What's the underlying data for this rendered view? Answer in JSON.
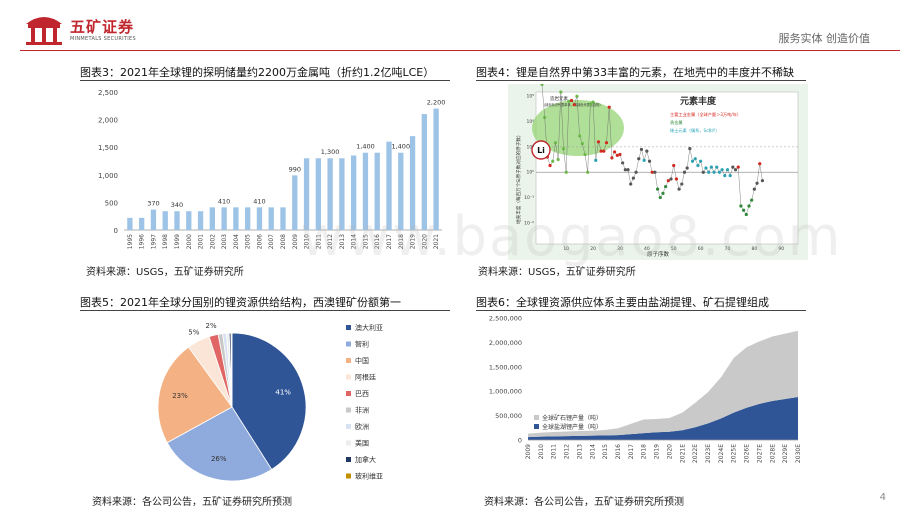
{
  "header": {
    "brand_name": "五矿证券",
    "brand_sub": "MINMETALS SECURITIES",
    "slogan": "服务实体  创造价值",
    "brand_color": "#c0262d"
  },
  "page_number": "4",
  "watermark": "www.baogao8.com",
  "charts": {
    "fig3": {
      "title": "图表3：2021年全球锂的探明储量约2200万金属吨（折约1.2亿吨LCE）",
      "source": "资料来源：USGS，五矿证券研究所"
    },
    "fig4": {
      "title": "图表4：锂是自然界中第33丰富的元素，在地壳中的丰度并不稀缺",
      "source": "资料来源：USGS，五矿证券研究所",
      "inner_title": "元素丰度",
      "legend_rock": "造岩元素",
      "legend_rock_sub": "（绿色标识代表单体，浅绿色代表化合物）",
      "legend_industrial": "主要工业金属（全球产量＞3万吨/年）",
      "legend_precious": "贵金属",
      "legend_rare": "稀土元素（镧系，Sc和Y）",
      "y_axis_label": "地壳丰度（每百万个Si原子数对应的原子数）",
      "x_axis_label": "原子序数",
      "li_label": "Li",
      "x_ticks": [
        "10",
        "20",
        "30",
        "40",
        "50",
        "60",
        "70",
        "80",
        "90"
      ],
      "y_ticks": [
        "10⁹",
        "10⁶",
        "10³",
        "10⁰",
        "10⁻³",
        "10⁻⁶"
      ],
      "colors": {
        "rock": "#6fbf4a",
        "industrial": "#d9261c",
        "precious": "#2e8b3a",
        "rare": "#2aa7b8"
      }
    },
    "fig5": {
      "title": "图表5：2021年全球分国别的锂资源供给结构，西澳锂矿份额第一",
      "source": "资料来源：各公司公告，五矿证券研究所预测"
    },
    "fig6": {
      "title": "图表6：全球锂资源供应体系主要由盐湖提锂、矿石提锂组成",
      "source": "资料来源：各公司公告，五矿证券研究所预测"
    }
  },
  "chart_data": [
    {
      "type": "bar",
      "id": "fig3",
      "categories": [
        "1995",
        "1996",
        "1997",
        "1998",
        "1999",
        "2000",
        "2001",
        "2002",
        "2003",
        "2004",
        "2005",
        "2006",
        "2007",
        "2008",
        "2009",
        "2010",
        "2011",
        "2012",
        "2013",
        "2014",
        "2015",
        "2016",
        "2017",
        "2018",
        "2019",
        "2020",
        "2021"
      ],
      "values": [
        220,
        220,
        370,
        340,
        340,
        340,
        340,
        410,
        410,
        410,
        410,
        410,
        410,
        410,
        990,
        1300,
        1300,
        1300,
        1300,
        1350,
        1400,
        1400,
        1600,
        1400,
        1700,
        2100,
        2200
      ],
      "data_labels": [
        null,
        null,
        "370",
        null,
        "340",
        null,
        null,
        null,
        "410",
        null,
        null,
        "410",
        null,
        null,
        "990",
        null,
        null,
        "1,300",
        null,
        null,
        "1,400",
        null,
        null,
        "1,400",
        null,
        null,
        "2,200"
      ],
      "y_ticks": [
        "0",
        "500",
        "1,000",
        "1,500",
        "2,000",
        "2,500"
      ],
      "ylim": [
        0,
        2500
      ],
      "color": "#9dc3e6",
      "grid": false
    },
    {
      "type": "pie",
      "id": "fig5",
      "labels": [
        "澳大利亚",
        "智利",
        "中国",
        "阿根廷",
        "巴西",
        "非洲",
        "欧洲",
        "美国",
        "加拿大",
        "玻利维亚"
      ],
      "values": [
        41,
        26,
        23,
        5,
        2,
        1,
        0.8,
        0.6,
        0.4,
        0.2
      ],
      "data_labels": [
        "41%",
        "26%",
        "23%",
        "5%",
        "2%",
        "",
        "",
        "",
        "",
        ""
      ],
      "colors": [
        "#2f5597",
        "#8faadc",
        "#f4b183",
        "#fbe5d6",
        "#e06666",
        "#c9c9c9",
        "#d9e2f3",
        "#ededed",
        "#1f3864",
        "#bf9000"
      ],
      "legend_position": "right"
    },
    {
      "type": "area",
      "id": "fig6",
      "categories": [
        "2009",
        "2010",
        "2011",
        "2012",
        "2013",
        "2014",
        "2015",
        "2016",
        "2017",
        "2018",
        "2019",
        "2020",
        "2021E",
        "2022E",
        "2023E",
        "2024E",
        "2025E",
        "2026E",
        "2027E",
        "2028E",
        "2029E",
        "2030E"
      ],
      "series": [
        {
          "name": "全球盐湖锂产量（吨）",
          "values": [
            60000,
            70000,
            75000,
            80000,
            85000,
            90000,
            95000,
            100000,
            120000,
            140000,
            160000,
            170000,
            200000,
            260000,
            340000,
            440000,
            560000,
            660000,
            740000,
            800000,
            840000,
            880000
          ],
          "color": "#2f5597"
        },
        {
          "name": "全球矿石锂产量（吨）",
          "values": [
            70000,
            80000,
            90000,
            95000,
            100000,
            100000,
            110000,
            140000,
            210000,
            280000,
            270000,
            280000,
            360000,
            500000,
            640000,
            840000,
            1120000,
            1240000,
            1280000,
            1320000,
            1340000,
            1360000
          ],
          "color": "#c9c9c9"
        }
      ],
      "y_ticks": [
        "0",
        "500,000",
        "1,000,000",
        "1,500,000",
        "2,000,000",
        "2,500,000"
      ],
      "ylim": [
        0,
        2500000
      ],
      "stacked": true,
      "legend_position": "bottom-left"
    }
  ]
}
